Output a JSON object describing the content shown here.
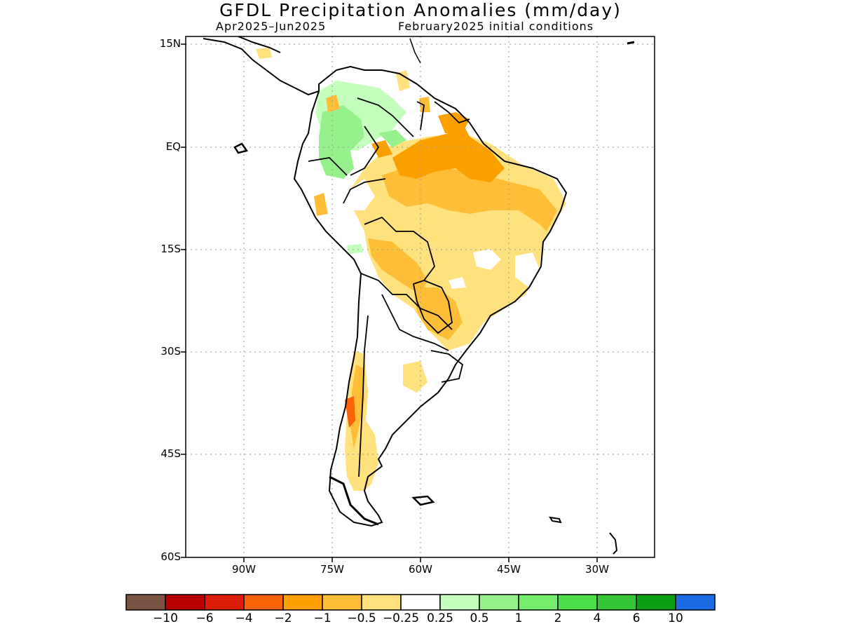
{
  "title": "GFDL Precipitation Anomalies (mm/day)",
  "subtitle_left": "Apr2025–Jun2025",
  "subtitle_right": "February2025 initial conditions",
  "lat_labels": [
    "15N",
    "EQ",
    "15S",
    "30S",
    "45S",
    "60S"
  ],
  "lon_labels": [
    "90W",
    "75W",
    "60W",
    "45W",
    "30W"
  ],
  "colorbar": {
    "colors": [
      "#7b5343",
      "#b80000",
      "#de1c0a",
      "#fb630b",
      "#fca000",
      "#febe38",
      "#ffe27d",
      "#ffffff",
      "#c5ffbd",
      "#96f18c",
      "#76ec6c",
      "#4cdd4a",
      "#34c634",
      "#0c9f16",
      "#1d6be4"
    ],
    "labels": [
      "−10",
      "−6",
      "−4",
      "−2",
      "−1",
      "−0.5",
      "−0.25",
      "0.25",
      "0.5",
      "1",
      "2",
      "4",
      "6",
      "10"
    ]
  },
  "colors": {
    "dry_light": "#ffe27d",
    "dry_medium": "#febe38",
    "dry_strong": "#fca000",
    "dry_stronger": "#fb630b",
    "wet_light": "#c5ffbd",
    "wet_medium": "#96f18c"
  }
}
